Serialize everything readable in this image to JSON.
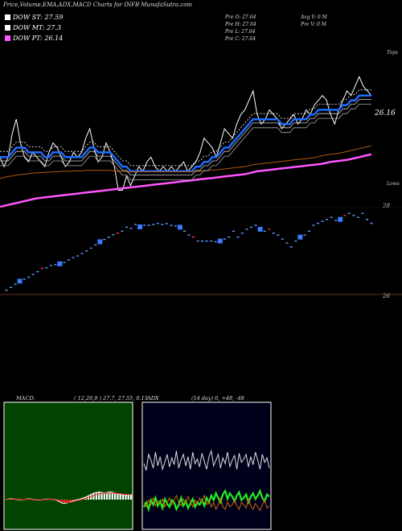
{
  "header": {
    "title": "Price,Volume,EMA,ADX,MACD Charts for INFB MunafaSutra.com"
  },
  "legend": [
    {
      "label": "DOW ST: 27.59",
      "color": "#ffffff"
    },
    {
      "label": "DOW MT: 27.3",
      "color": "#ffffff"
    },
    {
      "label": "DOW PT: 26.14",
      "color": "#ff55ff"
    }
  ],
  "stats": {
    "open": "Pre  O: 27.64",
    "high": "Pre  H: 27.64",
    "low": "Pre  L: 27.64",
    "close": "Pre  C: 27.64",
    "avg_vol": "Avg V: 0  M",
    "pre_vol": "Pre  V: 0  M"
  },
  "macd_panel": {
    "title": "MACD:",
    "params": "( 12,26,9 ) 27.7,  27.55,  0.15"
  },
  "adx_panel": {
    "title": "ADX",
    "params": "(14  day) 0,  +48, -48"
  },
  "chart_data": [
    {
      "type": "line",
      "name": "price-ema-panel",
      "top_label": "Tops",
      "bottom_label": "Lows",
      "right_value_label": "26.16",
      "ylim": [
        25.2,
        28.6
      ],
      "x_count": 92,
      "series": [
        {
          "name": "price",
          "color": "#ffffff",
          "values": [
            26.3,
            26.1,
            26.3,
            26.8,
            27.1,
            26.6,
            26.3,
            26.2,
            26.4,
            26.3,
            26.2,
            26.1,
            26.4,
            26.6,
            26.5,
            26.3,
            26.1,
            26.2,
            26.4,
            26.3,
            26.4,
            26.7,
            26.9,
            26.5,
            26.2,
            26.3,
            26.6,
            26.4,
            26.1,
            25.6,
            25.6,
            25.9,
            25.7,
            25.9,
            26.1,
            26.0,
            26.2,
            26.3,
            26.1,
            26.0,
            26.1,
            26.0,
            26.1,
            26.0,
            26.1,
            26.2,
            26.0,
            26.1,
            26.2,
            26.4,
            26.7,
            26.6,
            26.5,
            26.3,
            26.6,
            26.9,
            26.8,
            26.7,
            27.0,
            27.2,
            27.3,
            27.5,
            27.7,
            27.2,
            27.0,
            27.1,
            27.3,
            27.2,
            27.1,
            26.9,
            27.0,
            27.1,
            27.2,
            27.0,
            27.1,
            27.3,
            27.2,
            27.4,
            27.5,
            27.6,
            27.5,
            27.2,
            27.0,
            27.3,
            27.5,
            27.7,
            27.6,
            27.8,
            28.0,
            27.8,
            27.7,
            27.6
          ]
        },
        {
          "name": "ema-short",
          "color": "#1e6cff",
          "values": [
            26.3,
            26.3,
            26.3,
            26.4,
            26.5,
            26.5,
            26.5,
            26.4,
            26.4,
            26.4,
            26.4,
            26.3,
            26.3,
            26.4,
            26.4,
            26.4,
            26.3,
            26.3,
            26.3,
            26.3,
            26.3,
            26.4,
            26.5,
            26.5,
            26.4,
            26.4,
            26.4,
            26.4,
            26.3,
            26.2,
            26.1,
            26.1,
            26.0,
            26.0,
            26.0,
            26.0,
            26.0,
            26.0,
            26.0,
            26.0,
            26.0,
            26.0,
            26.0,
            26.0,
            26.0,
            26.0,
            26.0,
            26.0,
            26.1,
            26.1,
            26.2,
            26.2,
            26.3,
            26.3,
            26.4,
            26.5,
            26.5,
            26.6,
            26.7,
            26.8,
            26.9,
            27.0,
            27.1,
            27.1,
            27.1,
            27.1,
            27.1,
            27.1,
            27.1,
            27.0,
            27.0,
            27.0,
            27.1,
            27.1,
            27.1,
            27.1,
            27.2,
            27.2,
            27.3,
            27.3,
            27.3,
            27.3,
            27.3,
            27.3,
            27.4,
            27.4,
            27.5,
            27.5,
            27.6,
            27.6,
            27.6,
            27.6
          ]
        },
        {
          "name": "ema-long",
          "color": "#ff55ff",
          "values": [
            25.25,
            25.27,
            25.29,
            25.31,
            25.33,
            25.35,
            25.37,
            25.39,
            25.41,
            25.43,
            25.44,
            25.45,
            25.46,
            25.47,
            25.48,
            25.49,
            25.5,
            25.51,
            25.52,
            25.53,
            25.54,
            25.55,
            25.56,
            25.57,
            25.58,
            25.59,
            25.6,
            25.61,
            25.62,
            25.63,
            25.64,
            25.65,
            25.66,
            25.67,
            25.68,
            25.69,
            25.7,
            25.71,
            25.72,
            25.73,
            25.74,
            25.75,
            25.76,
            25.77,
            25.78,
            25.79,
            25.8,
            25.81,
            25.82,
            25.83,
            25.84,
            25.85,
            25.86,
            25.87,
            25.88,
            25.89,
            25.9,
            25.91,
            25.92,
            25.93,
            25.94,
            25.96,
            25.98,
            26.0,
            26.01,
            26.02,
            26.03,
            26.04,
            26.05,
            26.06,
            26.07,
            26.08,
            26.09,
            26.1,
            26.11,
            26.12,
            26.13,
            26.14,
            26.15,
            26.16,
            26.18,
            26.2,
            26.21,
            26.22,
            26.23,
            26.24,
            26.26,
            26.28,
            26.3,
            26.32,
            26.34,
            26.36
          ]
        },
        {
          "name": "ema-brown",
          "color": "#b05a10",
          "values": [
            25.85,
            25.87,
            25.89,
            25.9,
            25.92,
            25.93,
            25.94,
            25.95,
            25.96,
            25.97,
            25.97,
            25.98,
            25.98,
            25.99,
            25.99,
            26.0,
            26.0,
            26.0,
            26.01,
            26.01,
            26.01,
            26.02,
            26.02,
            26.02,
            26.02,
            26.02,
            26.02,
            26.02,
            26.01,
            26.0,
            26.0,
            25.99,
            25.99,
            25.99,
            25.99,
            25.99,
            25.99,
            25.99,
            25.99,
            25.99,
            25.99,
            25.99,
            25.99,
            25.99,
            25.99,
            25.99,
            25.99,
            25.99,
            26.0,
            26.0,
            26.01,
            26.02,
            26.03,
            26.03,
            26.04,
            26.05,
            26.06,
            26.07,
            26.08,
            26.09,
            26.1,
            26.12,
            26.14,
            26.15,
            26.16,
            26.17,
            26.18,
            26.19,
            26.2,
            26.21,
            26.22,
            26.23,
            26.24,
            26.25,
            26.26,
            26.27,
            26.28,
            26.29,
            26.31,
            26.33,
            26.35,
            26.36,
            26.37,
            26.38,
            26.4,
            26.42,
            26.44,
            26.46,
            26.48,
            26.5,
            26.52,
            26.54
          ]
        }
      ]
    },
    {
      "type": "scatter",
      "name": "price-dots-panel",
      "ylim": [
        25.9,
        28.15
      ],
      "tick_labels": [
        "28",
        "26"
      ],
      "tick_values": [
        28,
        26
      ],
      "x_count": 92,
      "points": [
        26.05,
        26.12,
        26.2,
        26.28,
        26.33,
        26.38,
        26.45,
        26.52,
        26.6,
        26.62,
        26.68,
        26.7,
        26.72,
        26.75,
        26.82,
        26.88,
        26.92,
        26.98,
        27.05,
        27.12,
        27.2,
        27.28,
        27.34,
        27.4,
        27.46,
        27.5,
        27.55,
        27.65,
        27.62,
        27.72,
        27.66,
        27.7,
        27.7,
        27.72,
        27.75,
        27.72,
        27.74,
        27.7,
        27.68,
        27.65,
        27.55,
        27.45,
        27.4,
        27.3,
        27.3,
        27.3,
        27.3,
        27.28,
        27.3,
        27.35,
        27.4,
        27.55,
        27.4,
        27.5,
        27.6,
        27.65,
        27.7,
        27.6,
        27.55,
        27.6,
        27.5,
        27.45,
        27.35,
        27.25,
        27.15,
        27.3,
        27.4,
        27.45,
        27.55,
        27.7,
        27.75,
        27.8,
        27.85,
        27.9,
        27.82,
        27.85,
        27.95,
        28.0,
        27.95,
        27.9,
        28.0,
        27.85,
        27.75
      ]
    },
    {
      "type": "area",
      "name": "macd-panel",
      "ylim": [
        -1.5,
        1.5
      ],
      "series": [
        {
          "name": "macd",
          "color": "#ffffff",
          "values": [
            0.0,
            0.02,
            0.03,
            0.02,
            0.01,
            0.0,
            -0.01,
            0.0,
            0.02,
            0.03,
            0.01,
            0.0,
            -0.01,
            -0.02,
            0.0,
            0.01,
            0.02,
            0.01,
            0.0,
            -0.01,
            -0.06,
            -0.1,
            -0.12,
            -0.1,
            -0.08,
            -0.05,
            -0.02,
            0.0,
            0.02,
            0.05,
            0.08,
            0.12,
            0.16,
            0.2,
            0.22,
            0.24,
            0.22,
            0.2,
            0.22,
            0.24,
            0.23,
            0.2,
            0.18,
            0.16,
            0.15,
            0.14,
            0.15,
            0.16
          ]
        },
        {
          "name": "signal",
          "color": "#ff2020",
          "values": [
            0.0,
            0.01,
            0.02,
            0.02,
            0.02,
            0.01,
            0.0,
            0.0,
            0.01,
            0.02,
            0.02,
            0.01,
            0.0,
            -0.01,
            -0.01,
            0.0,
            0.01,
            0.01,
            0.01,
            0.0,
            -0.02,
            -0.05,
            -0.08,
            -0.09,
            -0.09,
            -0.07,
            -0.05,
            -0.03,
            -0.01,
            0.01,
            0.04,
            0.07,
            0.1,
            0.13,
            0.16,
            0.18,
            0.19,
            0.19,
            0.2,
            0.21,
            0.21,
            0.2,
            0.19,
            0.18,
            0.17,
            0.16,
            0.16,
            0.16
          ]
        }
      ]
    },
    {
      "type": "line",
      "name": "adx-panel",
      "ylim": [
        0,
        100
      ],
      "series": [
        {
          "name": "adx",
          "color": "#dddddd",
          "values": [
            52,
            46,
            60,
            55,
            48,
            62,
            50,
            58,
            47,
            53,
            60,
            49,
            57,
            51,
            63,
            48,
            55,
            60,
            50,
            58,
            47,
            62,
            52,
            56,
            49,
            61,
            54,
            47,
            58,
            63,
            50,
            55,
            60,
            48,
            57,
            52,
            62,
            49,
            55,
            59,
            47,
            61,
            53,
            56,
            60,
            49,
            58,
            51,
            62,
            55,
            47,
            60,
            53,
            57,
            48
          ]
        },
        {
          "name": "di-plus",
          "color": "#22ee22",
          "values": [
            14,
            18,
            12,
            20,
            16,
            22,
            15,
            19,
            13,
            21,
            17,
            14,
            20,
            18,
            12,
            16,
            22,
            15,
            19,
            13,
            17,
            21,
            14,
            18,
            16,
            20,
            15,
            22,
            18,
            24,
            20,
            26,
            22,
            18,
            25,
            28,
            21,
            26,
            23,
            19,
            24,
            27,
            20,
            22,
            25,
            18,
            23,
            26,
            21,
            24,
            28,
            22,
            19,
            25,
            23
          ]
        },
        {
          "name": "di-minus",
          "color": "#cc6600",
          "values": [
            18,
            14,
            20,
            16,
            22,
            15,
            19,
            17,
            21,
            14,
            18,
            22,
            16,
            20,
            24,
            18,
            15,
            21,
            17,
            23,
            19,
            14,
            20,
            16,
            22,
            18,
            24,
            16,
            20,
            14,
            18,
            12,
            16,
            22,
            14,
            12,
            18,
            14,
            16,
            20,
            15,
            12,
            18,
            16,
            13,
            21,
            15,
            12,
            17,
            14,
            11,
            16,
            20,
            13,
            15
          ]
        }
      ]
    }
  ]
}
